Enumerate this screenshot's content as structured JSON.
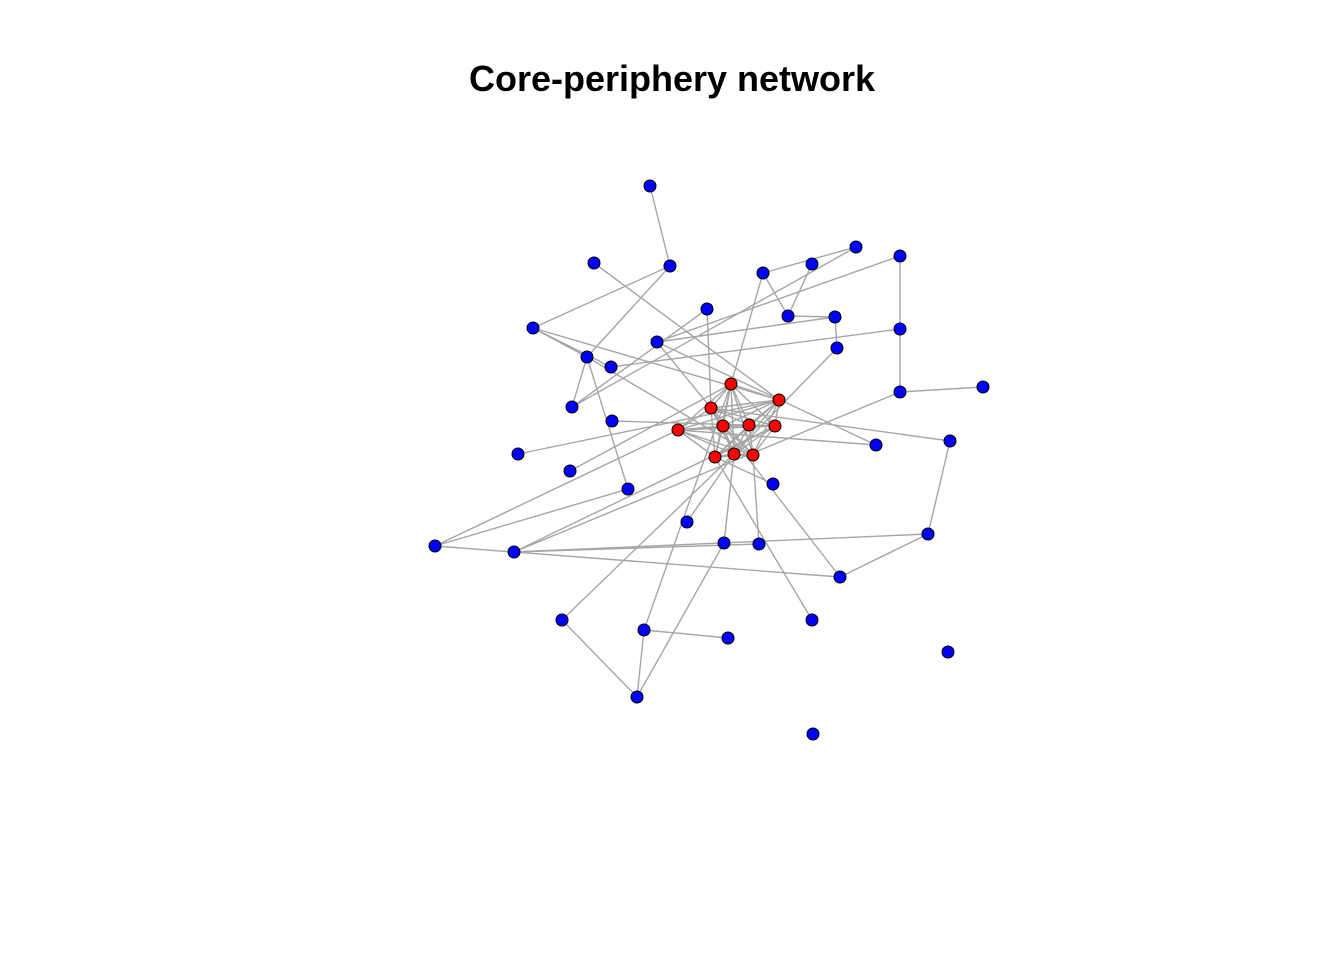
{
  "title": "Core-periphery network",
  "colors": {
    "core": "#ff0000",
    "periphery": "#0000ff",
    "edge": "#a6a6a6",
    "node_border": "#000000",
    "background": "#ffffff"
  },
  "nodes": [
    {
      "id": "c1",
      "group": "core"
    },
    {
      "id": "c2",
      "group": "core"
    },
    {
      "id": "c3",
      "group": "core"
    },
    {
      "id": "c4",
      "group": "core"
    },
    {
      "id": "c5",
      "group": "core"
    },
    {
      "id": "c6",
      "group": "core"
    },
    {
      "id": "c7",
      "group": "core"
    },
    {
      "id": "c8",
      "group": "core"
    },
    {
      "id": "c9",
      "group": "core"
    },
    {
      "id": "c10",
      "group": "core"
    },
    {
      "id": "p1",
      "group": "periphery"
    },
    {
      "id": "p2",
      "group": "periphery"
    },
    {
      "id": "p3",
      "group": "periphery"
    },
    {
      "id": "p4",
      "group": "periphery"
    },
    {
      "id": "p5",
      "group": "periphery"
    },
    {
      "id": "p6",
      "group": "periphery"
    },
    {
      "id": "p7",
      "group": "periphery"
    },
    {
      "id": "p8",
      "group": "periphery"
    },
    {
      "id": "p9",
      "group": "periphery"
    },
    {
      "id": "p10",
      "group": "periphery"
    },
    {
      "id": "p11",
      "group": "periphery"
    },
    {
      "id": "p12",
      "group": "periphery"
    },
    {
      "id": "p13",
      "group": "periphery"
    },
    {
      "id": "p14",
      "group": "periphery"
    },
    {
      "id": "p15",
      "group": "periphery"
    },
    {
      "id": "p16",
      "group": "periphery"
    },
    {
      "id": "p17",
      "group": "periphery"
    },
    {
      "id": "p18",
      "group": "periphery"
    },
    {
      "id": "p19",
      "group": "periphery"
    },
    {
      "id": "p20",
      "group": "periphery"
    },
    {
      "id": "p21",
      "group": "periphery"
    },
    {
      "id": "p22",
      "group": "periphery"
    },
    {
      "id": "p23",
      "group": "periphery"
    },
    {
      "id": "p24",
      "group": "periphery"
    },
    {
      "id": "p25",
      "group": "periphery"
    },
    {
      "id": "p26",
      "group": "periphery"
    },
    {
      "id": "p27",
      "group": "periphery"
    },
    {
      "id": "p28",
      "group": "periphery"
    },
    {
      "id": "p29",
      "group": "periphery"
    },
    {
      "id": "p30",
      "group": "periphery"
    },
    {
      "id": "p31",
      "group": "periphery"
    },
    {
      "id": "p32",
      "group": "periphery"
    },
    {
      "id": "p33",
      "group": "periphery"
    },
    {
      "id": "p34",
      "group": "periphery"
    },
    {
      "id": "p35",
      "group": "periphery"
    },
    {
      "id": "p36",
      "group": "periphery"
    },
    {
      "id": "p37",
      "group": "periphery"
    },
    {
      "id": "p38",
      "group": "periphery"
    },
    {
      "id": "p39",
      "group": "periphery"
    },
    {
      "id": "p40",
      "group": "periphery"
    }
  ],
  "edges": [
    [
      "c1",
      "c2"
    ],
    [
      "c1",
      "c3"
    ],
    [
      "c1",
      "c4"
    ],
    [
      "c1",
      "c5"
    ],
    [
      "c1",
      "c6"
    ],
    [
      "c1",
      "c7"
    ],
    [
      "c1",
      "c8"
    ],
    [
      "c1",
      "c9"
    ],
    [
      "c1",
      "c10"
    ],
    [
      "c2",
      "c3"
    ],
    [
      "c2",
      "c4"
    ],
    [
      "c2",
      "c5"
    ],
    [
      "c2",
      "c6"
    ],
    [
      "c2",
      "c7"
    ],
    [
      "c2",
      "c8"
    ],
    [
      "c2",
      "c9"
    ],
    [
      "c2",
      "c10"
    ],
    [
      "c3",
      "c4"
    ],
    [
      "c3",
      "c5"
    ],
    [
      "c3",
      "c6"
    ],
    [
      "c3",
      "c7"
    ],
    [
      "c3",
      "c8"
    ],
    [
      "c3",
      "c9"
    ],
    [
      "c3",
      "c10"
    ],
    [
      "c4",
      "c5"
    ],
    [
      "c4",
      "c6"
    ],
    [
      "c4",
      "c7"
    ],
    [
      "c4",
      "c8"
    ],
    [
      "c4",
      "c9"
    ],
    [
      "c4",
      "c10"
    ],
    [
      "c5",
      "c6"
    ],
    [
      "c5",
      "c7"
    ],
    [
      "c5",
      "c8"
    ],
    [
      "c5",
      "c9"
    ],
    [
      "c5",
      "c10"
    ],
    [
      "c6",
      "c7"
    ],
    [
      "c6",
      "c8"
    ],
    [
      "c6",
      "c9"
    ],
    [
      "c6",
      "c10"
    ],
    [
      "c7",
      "c8"
    ],
    [
      "c7",
      "c9"
    ],
    [
      "c7",
      "c10"
    ],
    [
      "c8",
      "c9"
    ],
    [
      "c8",
      "c10"
    ],
    [
      "c9",
      "c10"
    ],
    [
      "p1",
      "p3"
    ],
    [
      "p2",
      "c4"
    ],
    [
      "p3",
      "p10"
    ],
    [
      "p3",
      "p8"
    ],
    [
      "p4",
      "p18"
    ],
    [
      "p4",
      "p6"
    ],
    [
      "p5",
      "p11"
    ],
    [
      "p5",
      "p15"
    ],
    [
      "p6",
      "c3"
    ],
    [
      "p6",
      "p12"
    ],
    [
      "p7",
      "p18"
    ],
    [
      "p7",
      "c2"
    ],
    [
      "p8",
      "p14"
    ],
    [
      "p8",
      "c4"
    ],
    [
      "p8",
      "p10"
    ],
    [
      "p9",
      "p12"
    ],
    [
      "p10",
      "c10"
    ],
    [
      "p11",
      "p13"
    ],
    [
      "p11",
      "c2"
    ],
    [
      "p12",
      "p13"
    ],
    [
      "p13",
      "p16"
    ],
    [
      "p14",
      "p15"
    ],
    [
      "p15",
      "p20"
    ],
    [
      "p16",
      "c9"
    ],
    [
      "p17",
      "p20"
    ],
    [
      "p18",
      "p10"
    ],
    [
      "p19",
      "c7"
    ],
    [
      "p20",
      "p32"
    ],
    [
      "p21",
      "c1"
    ],
    [
      "p21",
      "p11"
    ],
    [
      "p22",
      "c4"
    ],
    [
      "p23",
      "c3"
    ],
    [
      "p24",
      "p31"
    ],
    [
      "p24",
      "p10"
    ],
    [
      "p25",
      "c8"
    ],
    [
      "p26",
      "c2"
    ],
    [
      "p27",
      "c9"
    ],
    [
      "p28",
      "p32"
    ],
    [
      "p28",
      "p26"
    ],
    [
      "p29",
      "c9"
    ],
    [
      "p30",
      "c10"
    ],
    [
      "p30",
      "p32"
    ],
    [
      "p31",
      "c1"
    ],
    [
      "p31",
      "p33"
    ],
    [
      "p32",
      "c7"
    ],
    [
      "p33",
      "c5"
    ],
    [
      "p33",
      "p28"
    ],
    [
      "p34",
      "c8"
    ],
    [
      "p35",
      "c9"
    ],
    [
      "p36",
      "p37"
    ],
    [
      "p36",
      "c3"
    ],
    [
      "p38",
      "p35"
    ],
    [
      "p38",
      "p36"
    ],
    [
      "p38",
      "p29"
    ]
  ]
}
